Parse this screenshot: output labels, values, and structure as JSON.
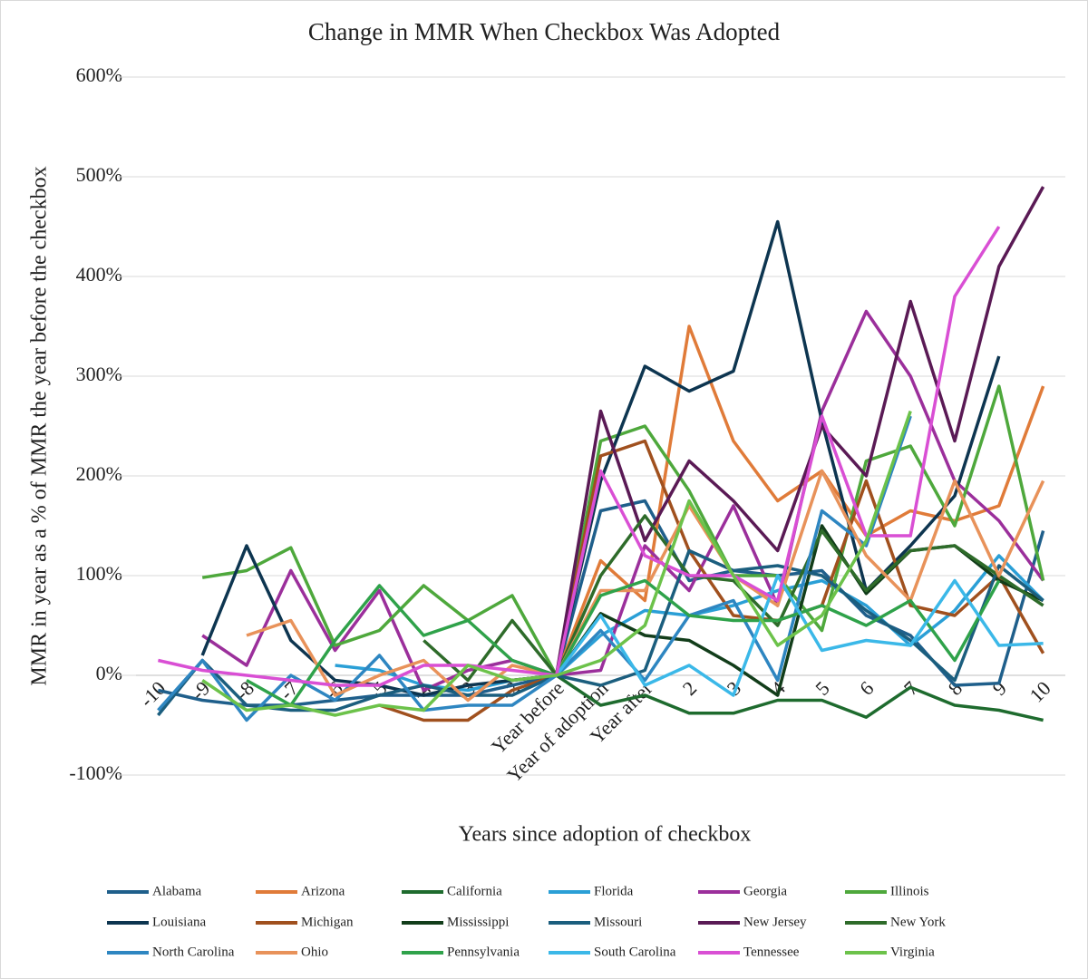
{
  "chart_data": {
    "type": "line",
    "title": "Change in MMR When Checkbox Was Adopted",
    "x_label": "Years since adoption of checkbox",
    "y_label": "MMR in year as a % of MMR the year before the checkbox",
    "categories": [
      "-10",
      "-9",
      "-8",
      "-7",
      "-6",
      "-5",
      "-4",
      "-3",
      "-2",
      "Year before",
      "Year of adoption",
      "Year after",
      "2",
      "3",
      "4",
      "5",
      "6",
      "7",
      "8",
      "9",
      "10"
    ],
    "ylim": [
      -100,
      600
    ],
    "yticks": [
      {
        "value": -100,
        "label": "-100%"
      },
      {
        "value": 0,
        "label": "0%"
      },
      {
        "value": 100,
        "label": "100%"
      },
      {
        "value": 200,
        "label": "200%"
      },
      {
        "value": 300,
        "label": "300%"
      },
      {
        "value": 400,
        "label": "400%"
      },
      {
        "value": 500,
        "label": "500%"
      },
      {
        "value": 600,
        "label": "600%"
      }
    ],
    "grid": true,
    "legend": "bottom",
    "series": [
      {
        "name": "Alabama",
        "color": "#1f5f8b",
        "values": [
          -15,
          -25,
          -30,
          -30,
          -25,
          -20,
          -20,
          -20,
          -10,
          0,
          165,
          175,
          95,
          105,
          100,
          105,
          60,
          40,
          -10,
          -8,
          145
        ]
      },
      {
        "name": "Arizona",
        "color": "#e07b39",
        "values": [
          null,
          null,
          null,
          null,
          null,
          null,
          null,
          null,
          null,
          0,
          115,
          75,
          350,
          235,
          175,
          205,
          140,
          165,
          155,
          170,
          290
        ]
      },
      {
        "name": "California",
        "color": "#1e6b2e",
        "values": [
          null,
          null,
          null,
          null,
          null,
          null,
          null,
          null,
          null,
          0,
          -30,
          -20,
          -38,
          -38,
          -25,
          -25,
          -42,
          -12,
          -30,
          -35,
          -45
        ]
      },
      {
        "name": "Florida",
        "color": "#2a9fd6",
        "values": [
          null,
          null,
          null,
          null,
          10,
          5,
          -10,
          -15,
          -5,
          0,
          40,
          65,
          60,
          70,
          85,
          95,
          70,
          30,
          65,
          120,
          75
        ]
      },
      {
        "name": "Georgia",
        "color": "#9b2f9b",
        "values": [
          null,
          40,
          10,
          105,
          25,
          85,
          -15,
          5,
          15,
          0,
          5,
          130,
          85,
          170,
          70,
          265,
          365,
          300,
          195,
          155,
          95
        ]
      },
      {
        "name": "Illinois",
        "color": "#4ea83c",
        "values": [
          null,
          98,
          105,
          128,
          30,
          45,
          90,
          55,
          80,
          0,
          235,
          250,
          185,
          100,
          100,
          45,
          215,
          230,
          150,
          290,
          95
        ]
      },
      {
        "name": "Louisiana",
        "color": "#0d3550",
        "values": [
          null,
          20,
          130,
          35,
          -5,
          -10,
          -20,
          -10,
          -5,
          0,
          195,
          310,
          285,
          305,
          455,
          255,
          85,
          130,
          180,
          320,
          null
        ]
      },
      {
        "name": "Michigan",
        "color": "#a0501e",
        "values": [
          null,
          null,
          null,
          null,
          null,
          -30,
          -45,
          -45,
          -15,
          0,
          220,
          235,
          125,
          60,
          55,
          70,
          195,
          70,
          60,
          100,
          22
        ]
      },
      {
        "name": "Mississippi",
        "color": "#123d1a",
        "values": [
          null,
          null,
          null,
          null,
          null,
          null,
          null,
          null,
          null,
          0,
          62,
          40,
          35,
          10,
          -20,
          150,
          82,
          125,
          130,
          95,
          75
        ]
      },
      {
        "name": "Missouri",
        "color": "#1b5e7e",
        "values": [
          -40,
          15,
          -30,
          -35,
          -35,
          -20,
          -10,
          -20,
          -20,
          0,
          -10,
          5,
          125,
          105,
          110,
          100,
          65,
          35,
          -5,
          110,
          75
        ]
      },
      {
        "name": "New Jersey",
        "color": "#5a1a55",
        "values": [
          null,
          null,
          null,
          null,
          null,
          null,
          null,
          null,
          -5,
          0,
          265,
          135,
          215,
          175,
          125,
          250,
          200,
          375,
          235,
          410,
          490
        ]
      },
      {
        "name": "New York",
        "color": "#2e6b2a",
        "values": [
          null,
          null,
          null,
          null,
          null,
          null,
          35,
          -5,
          55,
          0,
          100,
          160,
          100,
          95,
          50,
          145,
          85,
          125,
          130,
          100,
          70
        ]
      },
      {
        "name": "North Carolina",
        "color": "#2e86c1",
        "values": [
          -35,
          15,
          -45,
          0,
          -25,
          20,
          -35,
          -30,
          -30,
          0,
          45,
          -5,
          60,
          75,
          -5,
          165,
          130,
          260,
          null,
          null,
          null
        ]
      },
      {
        "name": "Ohio",
        "color": "#e8925a",
        "values": [
          null,
          null,
          40,
          55,
          -20,
          0,
          15,
          -25,
          10,
          0,
          85,
          85,
          170,
          100,
          70,
          205,
          120,
          75,
          195,
          100,
          195
        ]
      },
      {
        "name": "Pennsylvania",
        "color": "#2fa24a",
        "values": [
          null,
          null,
          -5,
          -30,
          35,
          90,
          40,
          55,
          15,
          0,
          80,
          95,
          60,
          55,
          55,
          70,
          50,
          75,
          15,
          95,
          null
        ]
      },
      {
        "name": "South Carolina",
        "color": "#3bb8e8",
        "values": [
          null,
          null,
          null,
          null,
          null,
          null,
          null,
          null,
          null,
          0,
          60,
          -10,
          10,
          -20,
          100,
          25,
          35,
          30,
          95,
          30,
          32
        ]
      },
      {
        "name": "Tennessee",
        "color": "#d94fd4",
        "values": [
          15,
          5,
          0,
          -5,
          -10,
          -10,
          10,
          10,
          5,
          0,
          205,
          120,
          100,
          100,
          75,
          260,
          140,
          140,
          380,
          450,
          null
        ]
      },
      {
        "name": "Virginia",
        "color": "#6cc24a",
        "values": [
          null,
          -5,
          -35,
          -30,
          -40,
          -30,
          -35,
          10,
          -5,
          0,
          15,
          50,
          175,
          100,
          30,
          60,
          135,
          265,
          null,
          null,
          null
        ]
      }
    ]
  }
}
